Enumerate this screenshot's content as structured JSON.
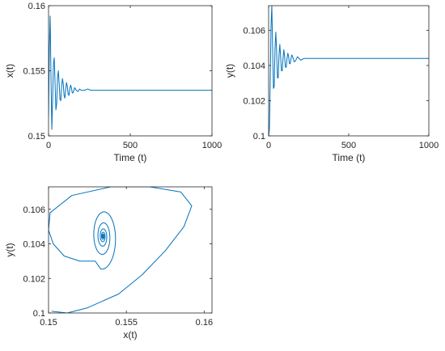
{
  "chart_data": [
    {
      "type": "line",
      "title": "",
      "xlabel": "Time (t)",
      "ylabel": "x(t)",
      "xlim": [
        0,
        1000
      ],
      "ylim": [
        0.15,
        0.16
      ],
      "xticks": [
        0,
        500,
        1000
      ],
      "xtick_labels": [
        "0",
        "500",
        "1000"
      ],
      "yticks": [
        0.15,
        0.155,
        0.16
      ],
      "ytick_labels": [
        "0.15",
        "0.155",
        "0.16"
      ],
      "grid": false,
      "legend": "none",
      "color": "#0072BD",
      "series": [
        {
          "x": [
            0,
            5,
            10,
            15,
            20,
            25,
            30,
            35,
            40,
            45,
            50,
            55,
            60,
            65,
            70,
            75,
            80,
            85,
            90,
            95,
            100,
            105,
            110,
            115,
            120,
            125,
            130,
            135,
            140,
            145,
            150,
            160,
            170,
            180,
            190,
            200,
            220,
            240,
            260,
            280,
            300,
            350,
            400,
            500,
            600,
            700,
            800,
            900,
            1000
          ],
          "y": [
            0.1515,
            0.1568,
            0.1592,
            0.1545,
            0.1505,
            0.1528,
            0.1555,
            0.156,
            0.154,
            0.152,
            0.1525,
            0.1545,
            0.155,
            0.154,
            0.1528,
            0.1527,
            0.1538,
            0.1544,
            0.154,
            0.1531,
            0.1529,
            0.1536,
            0.1541,
            0.1538,
            0.1532,
            0.1531,
            0.1536,
            0.1539,
            0.1537,
            0.1533,
            0.1533,
            0.1537,
            0.1535,
            0.1534,
            0.1536,
            0.1535,
            0.1535,
            0.1536,
            0.1535,
            0.1535,
            0.1535,
            0.1535,
            0.1535,
            0.1535,
            0.1535,
            0.1535,
            0.1535,
            0.1535,
            0.1535
          ]
        }
      ]
    },
    {
      "type": "line",
      "title": "",
      "xlabel": "Time (t)",
      "ylabel": "y(t)",
      "xlim": [
        0,
        1000
      ],
      "ylim": [
        0.1,
        0.1074
      ],
      "xticks": [
        0,
        500,
        1000
      ],
      "xtick_labels": [
        "0",
        "500",
        "1000"
      ],
      "yticks": [
        0.1,
        0.102,
        0.104,
        0.106
      ],
      "ytick_labels": [
        "0.1",
        "0.102",
        "0.104",
        "0.106"
      ],
      "grid": false,
      "legend": "none",
      "color": "#0072BD",
      "series": [
        {
          "x": [
            0,
            5,
            10,
            15,
            20,
            25,
            30,
            35,
            40,
            45,
            50,
            55,
            60,
            65,
            70,
            75,
            80,
            85,
            90,
            95,
            100,
            105,
            110,
            115,
            120,
            125,
            130,
            135,
            140,
            145,
            150,
            160,
            170,
            180,
            190,
            200,
            220,
            240,
            260,
            280,
            300,
            400,
            500,
            600,
            700,
            800,
            900,
            1000
          ],
          "y": [
            0.1,
            0.1004,
            0.103,
            0.1062,
            0.1074,
            0.105,
            0.1027,
            0.1028,
            0.105,
            0.1059,
            0.1048,
            0.1033,
            0.1033,
            0.1046,
            0.1052,
            0.1045,
            0.1037,
            0.1037,
            0.1044,
            0.1049,
            0.1045,
            0.1039,
            0.1039,
            0.1044,
            0.1047,
            0.1045,
            0.1041,
            0.1041,
            0.1044,
            0.1046,
            0.1045,
            0.1042,
            0.1043,
            0.1045,
            0.1044,
            0.1043,
            0.1044,
            0.1044,
            0.1044,
            0.1044,
            0.1044,
            0.1044,
            0.1044,
            0.1044,
            0.1044,
            0.1044,
            0.1044,
            0.1044
          ]
        }
      ]
    },
    {
      "type": "line",
      "title": "",
      "xlabel": "x(t)",
      "ylabel": "y(t)",
      "xlim": [
        0.15,
        0.1605
      ],
      "ylim": [
        0.1,
        0.1073
      ],
      "xticks": [
        0.15,
        0.155,
        0.16
      ],
      "xtick_labels": [
        "0.15",
        "0.155",
        "0.16"
      ],
      "yticks": [
        0.1,
        0.102,
        0.104,
        0.106
      ],
      "ytick_labels": [
        "0.1",
        "0.102",
        "0.104",
        "0.106"
      ],
      "grid": false,
      "legend": "none",
      "color": "#0072BD",
      "phase_portrait": {
        "equilibrium": [
          0.1535,
          0.10444
        ],
        "start": [
          0.1502,
          0.1001
        ],
        "outer_loop": [
          [
            0.1502,
            0.1001
          ],
          [
            0.1512,
            0.1
          ],
          [
            0.1525,
            0.1003
          ],
          [
            0.1545,
            0.1011
          ],
          [
            0.156,
            0.1022
          ],
          [
            0.1575,
            0.1036
          ],
          [
            0.1587,
            0.105
          ],
          [
            0.1592,
            0.1062
          ],
          [
            0.1585,
            0.107
          ],
          [
            0.1565,
            0.1073
          ],
          [
            0.154,
            0.1073
          ],
          [
            0.1515,
            0.1068
          ],
          [
            0.1501,
            0.1058
          ],
          [
            0.15,
            0.1048
          ],
          [
            0.1503,
            0.104
          ],
          [
            0.151,
            0.1033
          ],
          [
            0.152,
            0.103
          ],
          [
            0.153,
            0.103
          ]
        ],
        "turns": 6,
        "decay_per_turn": 0.55
      }
    }
  ]
}
